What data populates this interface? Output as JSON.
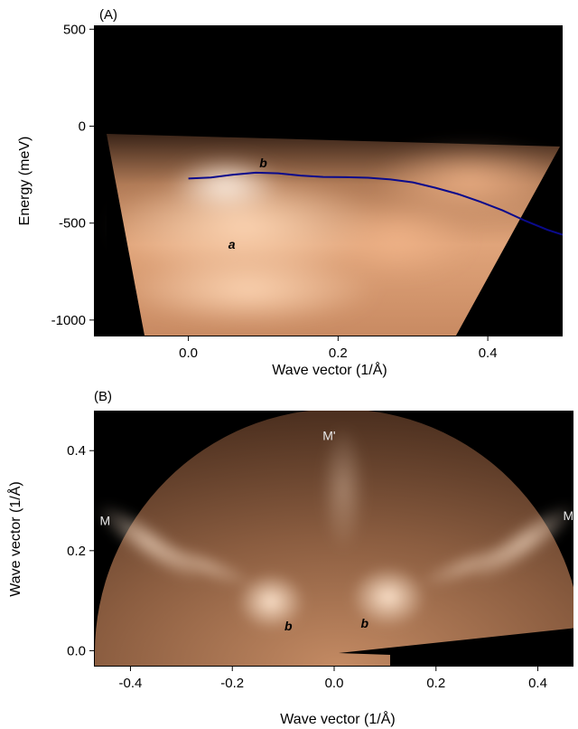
{
  "chart_data": [
    {
      "type": "heatmap",
      "panel_label": "(A)",
      "xlabel": "Wave vector (1/Å)",
      "ylabel": "Energy (meV)",
      "xlim": [
        -0.125,
        0.5
      ],
      "ylim": [
        -1080,
        520
      ],
      "x_ticks": [
        "0.0",
        "0.2",
        "0.4"
      ],
      "x_tick_values": [
        0.0,
        0.2,
        0.4
      ],
      "y_ticks": [
        "500",
        "0",
        "-500",
        "-1000"
      ],
      "y_tick_values": [
        500,
        0,
        -500,
        -1000
      ],
      "annotations": [
        {
          "text": "b",
          "x": 0.1,
          "y": -190
        },
        {
          "text": "a",
          "x": 0.058,
          "y": -610
        }
      ],
      "series": [
        {
          "x": [
            0.0,
            0.03,
            0.06,
            0.09,
            0.12,
            0.15,
            0.18,
            0.21,
            0.24,
            0.27,
            0.3,
            0.33,
            0.36,
            0.39,
            0.42,
            0.45,
            0.48,
            0.5
          ],
          "y": [
            -270,
            -265,
            -250,
            -240,
            -243,
            -255,
            -262,
            -263,
            -266,
            -275,
            -290,
            -318,
            -350,
            -390,
            -435,
            -488,
            -535,
            -560
          ],
          "color": "#0a0a8c"
        }
      ]
    },
    {
      "type": "heatmap",
      "panel_label": "(B)",
      "xlabel": "Wave vector (1/Å)",
      "ylabel": "Wave vector (1/Å)",
      "xlim": [
        -0.47,
        0.47
      ],
      "ylim": [
        -0.03,
        0.48
      ],
      "x_ticks": [
        "-0.4",
        "-0.2",
        "0.0",
        "0.2",
        "0.4"
      ],
      "x_tick_values": [
        -0.4,
        -0.2,
        0.0,
        0.2,
        0.4
      ],
      "y_ticks": [
        "0.4",
        "0.2",
        "0.0"
      ],
      "y_tick_values": [
        0.4,
        0.2,
        0.0
      ],
      "annotations": [
        {
          "text": "M'",
          "x": -0.01,
          "y": 0.43
        },
        {
          "text": "M",
          "x": -0.45,
          "y": 0.26
        },
        {
          "text": "M",
          "x": 0.46,
          "y": 0.27
        },
        {
          "text": "b",
          "x": -0.09,
          "y": 0.05
        },
        {
          "text": "b",
          "x": 0.06,
          "y": 0.055
        }
      ]
    }
  ]
}
